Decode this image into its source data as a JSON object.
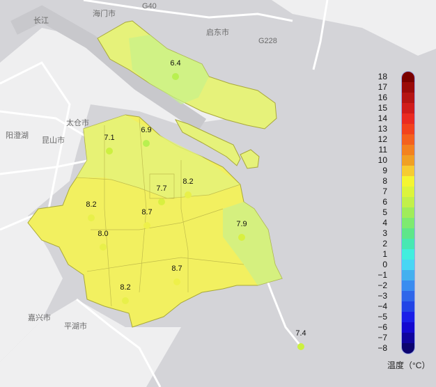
{
  "places": [
    {
      "name": "长江"
    },
    {
      "name": "海门市"
    },
    {
      "name": "G40"
    },
    {
      "name": "启东市"
    },
    {
      "name": "G228"
    },
    {
      "name": "太仓市"
    },
    {
      "name": "阳澄湖"
    },
    {
      "name": "昆山市"
    },
    {
      "name": "嘉兴市"
    },
    {
      "name": "平湖市"
    }
  ],
  "stations": [
    {
      "value": "6.4",
      "temp": 6.4
    },
    {
      "value": "6.9",
      "temp": 6.9
    },
    {
      "value": "7.1",
      "temp": 7.1
    },
    {
      "value": "7.7",
      "temp": 7.7
    },
    {
      "value": "8.2",
      "temp": 8.2
    },
    {
      "value": "8.2",
      "temp": 8.2
    },
    {
      "value": "8.7",
      "temp": 8.7
    },
    {
      "value": "8.0",
      "temp": 8.0
    },
    {
      "value": "7.9",
      "temp": 7.9
    },
    {
      "value": "8.7",
      "temp": 8.7
    },
    {
      "value": "8.2",
      "temp": 8.2
    },
    {
      "value": "7.4",
      "temp": 7.4
    }
  ],
  "legend": {
    "title": "温度（°C）",
    "labels": [
      "18",
      "17",
      "16",
      "15",
      "14",
      "13",
      "12",
      "11",
      "10",
      "9",
      "8",
      "7",
      "6",
      "5",
      "4",
      "3",
      "2",
      "1",
      "0",
      "−1",
      "−2",
      "−3",
      "−4",
      "−5",
      "−6",
      "−7",
      "−8"
    ],
    "colors": [
      "#7a0000",
      "#9a0a0a",
      "#b51414",
      "#d01c1c",
      "#ea2a22",
      "#f2421e",
      "#f4611e",
      "#f3821f",
      "#f0a024",
      "#f6cc32",
      "#f4f532",
      "#dcf43c",
      "#c2f04a",
      "#a0ec5a",
      "#7eea70",
      "#5ee68a",
      "#48e8b2",
      "#42eede",
      "#48d6f4",
      "#44b0ef",
      "#3a8cf0",
      "#2f66ea",
      "#2244e6",
      "#1a1ee8",
      "#1408d0",
      "#10049e",
      "#0c0470"
    ]
  }
}
